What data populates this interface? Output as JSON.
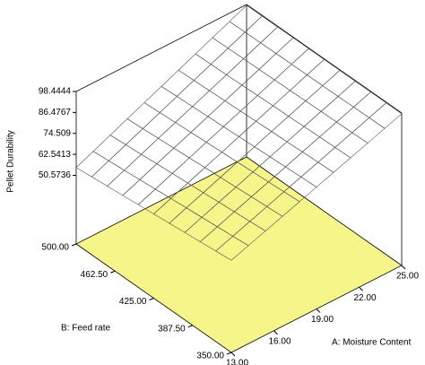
{
  "chart_data": {
    "type": "surface",
    "zlabel": "Pellet Durability",
    "xlabel": "A: Moisture Content",
    "ylabel": "B: Feed rate",
    "xlim": [
      13,
      25
    ],
    "xticks": [
      {
        "value": 13,
        "label": "13.00"
      },
      {
        "value": 16,
        "label": "16.00"
      },
      {
        "value": 19,
        "label": "19.00"
      },
      {
        "value": 22,
        "label": "22.00"
      },
      {
        "value": 25,
        "label": "25.00"
      }
    ],
    "ylim": [
      350,
      500
    ],
    "yticks": [
      {
        "value": 350,
        "label": "350.00"
      },
      {
        "value": 387.5,
        "label": "387.50"
      },
      {
        "value": 425,
        "label": "425.00"
      },
      {
        "value": 462.5,
        "label": "462.50"
      },
      {
        "value": 500,
        "label": "500.00"
      }
    ],
    "zlim": [
      11.4,
      98.4444
    ],
    "zticks": [
      50.5736,
      62.5413,
      74.509,
      86.4767,
      98.4444
    ],
    "x": [
      13,
      14.2,
      15.4,
      16.6,
      17.8,
      19,
      20.2,
      21.4,
      22.6,
      23.8,
      25
    ],
    "y": [
      350,
      365,
      380,
      395,
      410,
      425,
      440,
      455,
      470,
      485,
      500
    ],
    "z": [
      [
        64,
        67.4,
        70.8,
        74.2,
        77.6,
        81,
        84.4,
        87.8,
        91.2,
        94.6,
        98
      ],
      [
        63.1,
        66.6,
        70.1,
        73.6,
        77.1,
        80.6,
        84.0,
        87.5,
        91.0,
        94.5,
        98
      ],
      [
        62.2,
        65.8,
        69.4,
        73.0,
        76.5,
        80.1,
        83.7,
        87.3,
        90.8,
        94.4,
        98
      ],
      [
        61.3,
        65.0,
        68.7,
        72.3,
        76.0,
        79.7,
        83.3,
        87.0,
        90.7,
        94.3,
        98
      ],
      [
        60.4,
        64.2,
        67.9,
        71.7,
        75.4,
        79.2,
        83.0,
        86.7,
        90.5,
        94.2,
        98
      ],
      [
        59.5,
        63.4,
        67.2,
        71.1,
        74.9,
        78.8,
        82.6,
        86.5,
        90.3,
        94.2,
        98
      ],
      [
        58.6,
        62.5,
        66.5,
        70.4,
        74.4,
        78.3,
        82.2,
        86.2,
        90.1,
        94.1,
        98
      ],
      [
        57.7,
        61.7,
        65.8,
        69.8,
        73.8,
        77.9,
        81.9,
        85.9,
        89.9,
        94.0,
        98
      ],
      [
        56.8,
        60.9,
        65.0,
        69.2,
        73.3,
        77.4,
        81.5,
        85.6,
        89.8,
        93.9,
        98
      ],
      [
        55.9,
        60.1,
        64.3,
        68.5,
        72.7,
        77.0,
        81.2,
        85.4,
        89.6,
        93.8,
        98
      ],
      [
        55,
        59.3,
        63.6,
        67.9,
        72.2,
        76.5,
        80.8,
        85.1,
        89.4,
        93.7,
        98
      ]
    ],
    "floor_color": "#f5f58a",
    "mesh_color": "#555555"
  }
}
